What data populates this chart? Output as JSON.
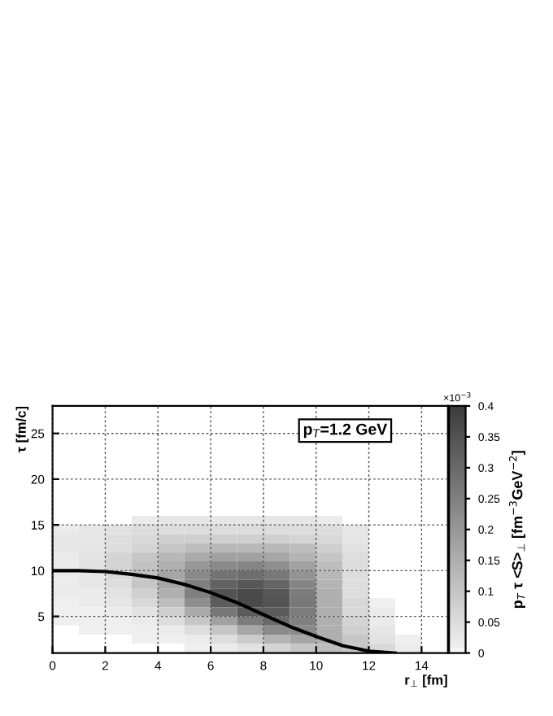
{
  "chart_data": {
    "type": "heatmap",
    "xlabel": "r$_{⊥}$ [fm]",
    "ylabel": "τ [fm/c]",
    "clabel": "p$_{T}$ τ <S>$_{⊥}$ [fm$^{−3}$GeV$^{−2}$]",
    "annotations": [
      "p$_{T}$=1.2 GeV",
      "×10$^{−3}$"
    ],
    "x": [
      0.5,
      1.5,
      2.5,
      3.5,
      4.5,
      5.5,
      6.5,
      7.5,
      8.5,
      9.5,
      10.5,
      11.5,
      12.5,
      13.5,
      14.5
    ],
    "y": [
      15.5,
      14.5,
      13.5,
      12.5,
      11.5,
      10.5,
      9.5,
      8.5,
      7.5,
      6.5,
      5.5,
      4.5,
      3.5,
      2.5,
      1.5
    ],
    "cells": [
      [
        0,
        0,
        0,
        0.02,
        0.03,
        0.03,
        0.03,
        0.03,
        0.03,
        0.03,
        0.02,
        0,
        0,
        0,
        0
      ],
      [
        0.02,
        0.03,
        0.04,
        0.05,
        0.05,
        0.05,
        0.05,
        0.05,
        0.05,
        0.05,
        0.05,
        0.03,
        0,
        0,
        0
      ],
      [
        0.03,
        0.03,
        0.05,
        0.06,
        0.08,
        0.08,
        0.08,
        0.08,
        0.08,
        0.07,
        0.06,
        0.03,
        0,
        0,
        0
      ],
      [
        0.03,
        0.03,
        0.05,
        0.07,
        0.1,
        0.12,
        0.13,
        0.13,
        0.13,
        0.12,
        0.08,
        0.04,
        0,
        0,
        0
      ],
      [
        0.02,
        0.04,
        0.07,
        0.1,
        0.13,
        0.16,
        0.18,
        0.18,
        0.17,
        0.14,
        0.1,
        0.05,
        0,
        0,
        0
      ],
      [
        0.02,
        0.04,
        0.07,
        0.11,
        0.15,
        0.2,
        0.23,
        0.24,
        0.22,
        0.18,
        0.12,
        0.05,
        0,
        0,
        0
      ],
      [
        0.02,
        0.03,
        0.06,
        0.11,
        0.17,
        0.23,
        0.28,
        0.29,
        0.27,
        0.21,
        0.13,
        0.05,
        0,
        0,
        0
      ],
      [
        0.02,
        0.03,
        0.05,
        0.1,
        0.17,
        0.25,
        0.32,
        0.34,
        0.31,
        0.24,
        0.14,
        0.05,
        0,
        0,
        0
      ],
      [
        0.02,
        0.02,
        0.04,
        0.08,
        0.15,
        0.25,
        0.35,
        0.37,
        0.34,
        0.26,
        0.15,
        0.05,
        0,
        0,
        0
      ],
      [
        0.01,
        0.02,
        0.03,
        0.06,
        0.12,
        0.22,
        0.33,
        0.37,
        0.35,
        0.27,
        0.15,
        0.06,
        0.01,
        0,
        0
      ],
      [
        0.01,
        0.01,
        0.02,
        0.04,
        0.08,
        0.16,
        0.27,
        0.33,
        0.33,
        0.26,
        0.15,
        0.06,
        0.02,
        0,
        0
      ],
      [
        0.01,
        0.01,
        0.01,
        0.02,
        0.05,
        0.1,
        0.18,
        0.26,
        0.3,
        0.25,
        0.15,
        0.07,
        0.02,
        0,
        0
      ],
      [
        0,
        0.01,
        0.01,
        0.01,
        0.02,
        0.05,
        0.1,
        0.17,
        0.23,
        0.23,
        0.15,
        0.08,
        0.03,
        0,
        0
      ],
      [
        0,
        0,
        0,
        0.01,
        0.01,
        0.02,
        0.05,
        0.09,
        0.14,
        0.17,
        0.15,
        0.1,
        0.04,
        0.01,
        0
      ],
      [
        0,
        0,
        0,
        0,
        0,
        0.01,
        0.02,
        0.04,
        0.07,
        0.1,
        0.12,
        0.1,
        0.06,
        0.02,
        0
      ]
    ],
    "clim": [
      0,
      0.4
    ],
    "cticks": [
      0,
      0.05,
      0.1,
      0.15,
      0.2,
      0.25,
      0.3,
      0.35,
      0.4
    ],
    "series": [
      {
        "type": "line",
        "color": "#000000",
        "x": [
          0,
          1,
          2,
          3,
          4,
          5,
          6,
          7,
          8,
          9,
          10,
          11,
          12,
          13
        ],
        "values": [
          10,
          10,
          9.9,
          9.6,
          9.2,
          8.5,
          7.6,
          6.5,
          5.2,
          3.9,
          2.8,
          1.8,
          1.2,
          1.0
        ]
      }
    ],
    "xlim": [
      0,
      15
    ],
    "ylim": [
      1,
      28
    ],
    "xticks": [
      0,
      2,
      4,
      6,
      8,
      10,
      12,
      14
    ],
    "yticks": [
      5,
      10,
      15,
      20,
      25
    ],
    "grid": true
  }
}
